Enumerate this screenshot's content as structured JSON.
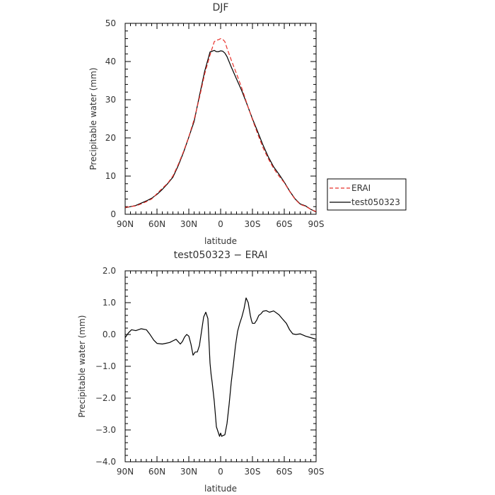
{
  "chart_data": [
    {
      "type": "line",
      "title": "DJF",
      "xlabel": "latitude",
      "ylabel": "Precipitable water (mm)",
      "x_ticks": [
        {
          "value": -90,
          "label": "90N"
        },
        {
          "value": -60,
          "label": "60N"
        },
        {
          "value": -30,
          "label": "30N"
        },
        {
          "value": 0,
          "label": "0"
        },
        {
          "value": 30,
          "label": "30S"
        },
        {
          "value": 60,
          "label": "60S"
        },
        {
          "value": 90,
          "label": "90S"
        }
      ],
      "y_ticks": [
        {
          "value": 0,
          "label": "0"
        },
        {
          "value": 10,
          "label": "10"
        },
        {
          "value": 20,
          "label": "20"
        },
        {
          "value": 30,
          "label": "30"
        },
        {
          "value": 40,
          "label": "40"
        },
        {
          "value": 50,
          "label": "50"
        }
      ],
      "xlim": [
        -90,
        90
      ],
      "ylim": [
        0,
        50
      ],
      "legend_position": "right",
      "series": [
        {
          "name": "ERAI",
          "color": "#e8302a",
          "dash": true,
          "x": [
            -90,
            -80,
            -75,
            -70,
            -65,
            -60,
            -55,
            -50,
            -45,
            -40,
            -35,
            -30,
            -25,
            -20,
            -15,
            -10,
            -6,
            -4,
            -2,
            0,
            2,
            4,
            6,
            10,
            15,
            20,
            25,
            30,
            35,
            40,
            45,
            50,
            55,
            60,
            65,
            70,
            75,
            80,
            85,
            90
          ],
          "y": [
            1.8,
            2.2,
            2.7,
            3.3,
            4.0,
            5.4,
            6.8,
            8.1,
            10.0,
            13.0,
            16.4,
            20.3,
            24.8,
            30.5,
            36.8,
            41.7,
            45.2,
            45.6,
            45.7,
            46.0,
            45.8,
            45.2,
            43.5,
            40.4,
            36.8,
            33.0,
            28.8,
            24.8,
            21.0,
            17.4,
            14.5,
            12.0,
            10.0,
            8.3,
            6.0,
            4.0,
            2.6,
            2.1,
            1.3,
            0.7
          ]
        },
        {
          "name": "test050323",
          "color": "#000000",
          "dash": false,
          "x": [
            -90,
            -80,
            -75,
            -70,
            -65,
            -60,
            -55,
            -50,
            -45,
            -40,
            -35,
            -30,
            -25,
            -20,
            -15,
            -10,
            -6,
            -4,
            -2,
            0,
            2,
            4,
            6,
            10,
            15,
            20,
            25,
            30,
            35,
            40,
            45,
            50,
            55,
            60,
            65,
            70,
            75,
            80,
            85,
            90
          ],
          "y": [
            1.7,
            2.3,
            2.9,
            3.5,
            4.2,
            5.2,
            6.5,
            8.0,
            9.7,
            12.7,
            16.2,
            20.2,
            24.3,
            31.0,
            37.5,
            42.5,
            42.9,
            42.6,
            42.6,
            42.8,
            42.7,
            42.2,
            41.3,
            38.6,
            35.4,
            32.3,
            28.7,
            25.0,
            21.6,
            18.1,
            15.0,
            12.4,
            10.5,
            8.4,
            6.1,
            4.1,
            2.7,
            2.2,
            1.3,
            0.6
          ]
        }
      ]
    },
    {
      "type": "line",
      "title": "test050323 − ERAI",
      "xlabel": "latitude",
      "ylabel": "Precipitable water (mm)",
      "x_ticks": [
        {
          "value": -90,
          "label": "90N"
        },
        {
          "value": -60,
          "label": "60N"
        },
        {
          "value": -30,
          "label": "30N"
        },
        {
          "value": 0,
          "label": "0"
        },
        {
          "value": 30,
          "label": "30S"
        },
        {
          "value": 60,
          "label": "60S"
        },
        {
          "value": 90,
          "label": "90S"
        }
      ],
      "y_ticks": [
        {
          "value": -4,
          "label": "−4.0"
        },
        {
          "value": -3,
          "label": "−3.0"
        },
        {
          "value": -2,
          "label": "−2.0"
        },
        {
          "value": -1,
          "label": "−1.0"
        },
        {
          "value": 0,
          "label": "0.0"
        },
        {
          "value": 1,
          "label": "1.0"
        },
        {
          "value": 2,
          "label": "2.0"
        }
      ],
      "xlim": [
        -90,
        90
      ],
      "ylim": [
        -4,
        2
      ],
      "series": [
        {
          "color": "#000000",
          "dash": false,
          "x": [
            -90,
            -87,
            -84,
            -80,
            -75,
            -70,
            -67,
            -63,
            -60,
            -55,
            -52,
            -48,
            -45,
            -42,
            -38,
            -36,
            -34,
            -32,
            -30,
            -28,
            -26,
            -24,
            -22,
            -20,
            -18,
            -16,
            -14,
            -12,
            -11,
            -10,
            -9,
            -8,
            -6,
            -4,
            -2,
            -1,
            0,
            1,
            2,
            4,
            6,
            8,
            10,
            12,
            14,
            16,
            18,
            20,
            22,
            24,
            26,
            28,
            29,
            30,
            32,
            34,
            36,
            38,
            40,
            43,
            46,
            50,
            55,
            58,
            62,
            65,
            68,
            71,
            75,
            80,
            85,
            90
          ],
          "y": [
            -0.1,
            0.05,
            0.15,
            0.12,
            0.18,
            0.15,
            0.02,
            -0.18,
            -0.28,
            -0.3,
            -0.28,
            -0.25,
            -0.2,
            -0.15,
            -0.3,
            -0.22,
            -0.08,
            0.0,
            -0.05,
            -0.3,
            -0.65,
            -0.55,
            -0.55,
            -0.35,
            0.1,
            0.55,
            0.7,
            0.5,
            -0.2,
            -0.9,
            -1.25,
            -1.5,
            -2.1,
            -2.9,
            -3.1,
            -3.2,
            -3.1,
            -3.2,
            -3.18,
            -3.15,
            -2.8,
            -2.2,
            -1.5,
            -0.95,
            -0.35,
            0.1,
            0.35,
            0.55,
            0.8,
            1.15,
            1.0,
            0.6,
            0.45,
            0.35,
            0.35,
            0.45,
            0.6,
            0.65,
            0.73,
            0.75,
            0.7,
            0.74,
            0.62,
            0.5,
            0.35,
            0.15,
            0.02,
            0.0,
            0.02,
            -0.05,
            -0.1,
            -0.15
          ]
        }
      ]
    }
  ]
}
